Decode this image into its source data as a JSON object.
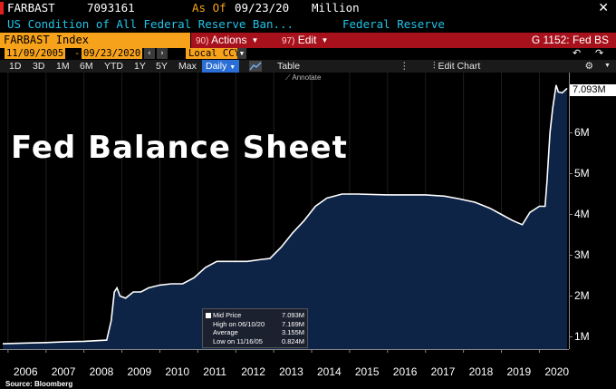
{
  "header": {
    "ticker": "FARBAST",
    "value": "7093161",
    "as_of_label": "As Of",
    "as_of_date": "09/23/20",
    "units": "Million",
    "close": "✕"
  },
  "subtitle": {
    "description": "US Condition of All Federal Reserve Ban...",
    "source": "Federal Reserve"
  },
  "toolbar": {
    "security": "FARBAST Index",
    "actions_num": "90)",
    "actions_label": "Actions",
    "edit_num": "97)",
    "edit_label": "Edit",
    "function_label": "G 1152: Fed BS"
  },
  "date_range": {
    "start": "11/09/2005",
    "end": "09/23/2020",
    "currency": "Local CCY"
  },
  "periods": [
    "1D",
    "3D",
    "1M",
    "6M",
    "YTD",
    "1Y",
    "5Y",
    "Max"
  ],
  "frequency": "Daily",
  "table_label": "Table",
  "edit_chart_label": "Edit Chart",
  "annotate_label": "Annotate",
  "overlay_title": "Fed Balance Sheet",
  "last_price_tag": "7.093M",
  "legend": {
    "mid_label": "Mid Price",
    "mid_value": "7.093M",
    "high_label": "High on 06/10/20",
    "high_value": "7.169M",
    "avg_label": "Average",
    "avg_value": "3.155M",
    "low_label": "Low on 11/16/05",
    "low_value": "0.824M"
  },
  "source_label": "Source: Bloomberg",
  "colors": {
    "orange": "#f7a21b",
    "red_bar": "#a7111b",
    "cyan": "#20c4e8",
    "area_fill": "#0d2447"
  },
  "icons": [
    "close-icon",
    "back-icon",
    "forward-icon",
    "gear-icon",
    "chart-type-icon",
    "edit-chart-icon",
    "annotate-icon"
  ],
  "chart_data": {
    "type": "area",
    "title": "Fed Balance Sheet",
    "units": "Million",
    "y_tick_labels": [
      "1M",
      "2M",
      "3M",
      "4M",
      "5M",
      "6M"
    ],
    "y_ticks": [
      1,
      2,
      3,
      4,
      5,
      6
    ],
    "ylim": [
      0.7,
      7.6
    ],
    "x_tick_labels": [
      "2006",
      "2007",
      "2008",
      "2009",
      "2010",
      "2011",
      "2012",
      "2013",
      "2014",
      "2015",
      "2016",
      "2017",
      "2018",
      "2019",
      "2020"
    ],
    "xlim": [
      2005.86,
      2020.73
    ],
    "series": [
      {
        "name": "FARBAST Index",
        "x": [
          2005.86,
          2006.5,
          2007.0,
          2007.5,
          2008.0,
          2008.6,
          2008.72,
          2008.8,
          2008.87,
          2008.95,
          2009.1,
          2009.3,
          2009.5,
          2009.7,
          2010.0,
          2010.3,
          2010.6,
          2010.9,
          2011.2,
          2011.5,
          2011.9,
          2012.3,
          2012.7,
          2012.9,
          2013.2,
          2013.5,
          2013.8,
          2014.1,
          2014.4,
          2014.8,
          2015.2,
          2016.0,
          2017.0,
          2017.5,
          2017.9,
          2018.3,
          2018.7,
          2019.0,
          2019.3,
          2019.55,
          2019.75,
          2020.0,
          2020.15,
          2020.2,
          2020.28,
          2020.35,
          2020.44,
          2020.5,
          2020.6,
          2020.73
        ],
        "values": [
          0.83,
          0.85,
          0.86,
          0.88,
          0.89,
          0.92,
          1.4,
          2.1,
          2.2,
          2.0,
          1.95,
          2.1,
          2.1,
          2.2,
          2.27,
          2.3,
          2.3,
          2.45,
          2.7,
          2.85,
          2.85,
          2.85,
          2.9,
          2.92,
          3.2,
          3.55,
          3.85,
          4.2,
          4.4,
          4.5,
          4.5,
          4.48,
          4.48,
          4.45,
          4.38,
          4.3,
          4.15,
          4.0,
          3.85,
          3.75,
          4.05,
          4.2,
          4.2,
          4.8,
          6.0,
          6.6,
          7.17,
          7.0,
          6.98,
          7.09
        ]
      }
    ]
  }
}
